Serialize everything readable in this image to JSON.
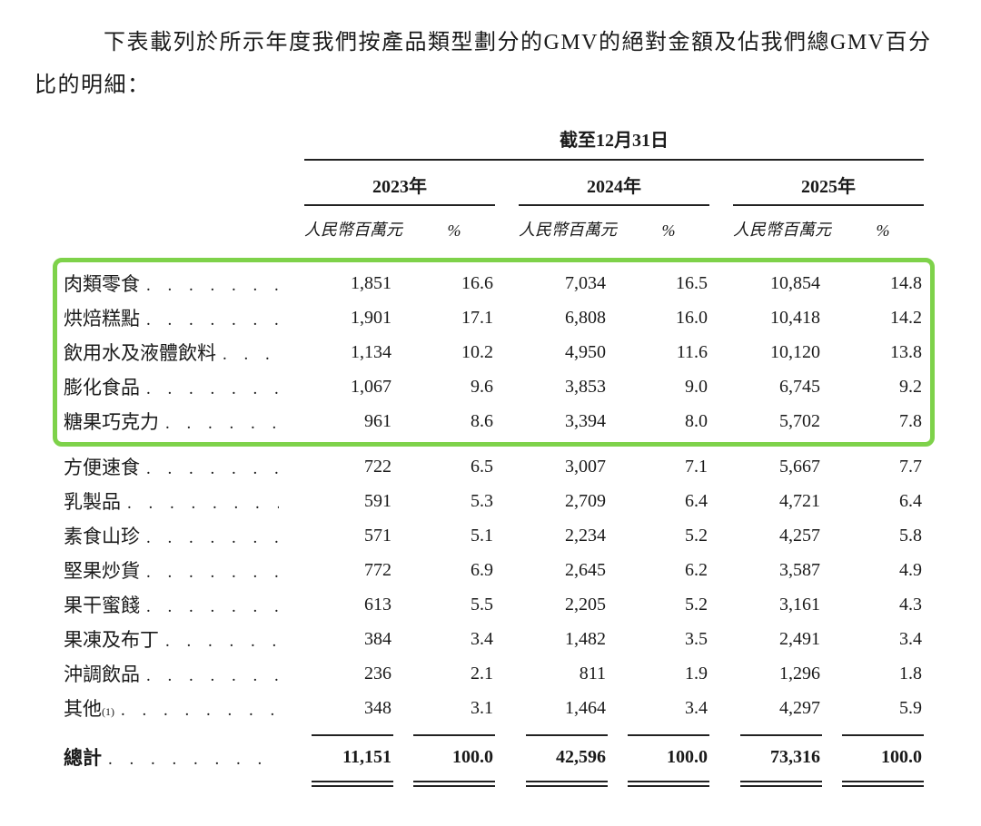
{
  "intro": "下表載列於所示年度我們按產品類型劃分的GMV的絕對金額及佔我們總GMV百分比的明細：",
  "table": {
    "span_header": "截至12月31日",
    "year_headers": [
      "2023年",
      "2024年",
      "2025年"
    ],
    "unit_header": "人民幣百萬元",
    "percent_header": "%",
    "leader": ". . . . . . . . . . . . . . . . . . . . . . . . . . . . . . . . . . . . . . . .",
    "highlight_color": "#7ed24a",
    "rows": [
      {
        "label": "肉類零食",
        "highlight": true,
        "values": [
          "1,851",
          "16.6",
          "7,034",
          "16.5",
          "10,854",
          "14.8"
        ]
      },
      {
        "label": "烘焙糕點",
        "highlight": true,
        "values": [
          "1,901",
          "17.1",
          "6,808",
          "16.0",
          "10,418",
          "14.2"
        ]
      },
      {
        "label": "飲用水及液體飲料",
        "highlight": true,
        "values": [
          "1,134",
          "10.2",
          "4,950",
          "11.6",
          "10,120",
          "13.8"
        ]
      },
      {
        "label": "膨化食品",
        "highlight": true,
        "values": [
          "1,067",
          "9.6",
          "3,853",
          "9.0",
          "6,745",
          "9.2"
        ]
      },
      {
        "label": "糖果巧克力",
        "highlight": true,
        "values": [
          "961",
          "8.6",
          "3,394",
          "8.0",
          "5,702",
          "7.8"
        ]
      },
      {
        "label": "方便速食",
        "highlight": false,
        "values": [
          "722",
          "6.5",
          "3,007",
          "7.1",
          "5,667",
          "7.7"
        ]
      },
      {
        "label": "乳製品",
        "highlight": false,
        "values": [
          "591",
          "5.3",
          "2,709",
          "6.4",
          "4,721",
          "6.4"
        ]
      },
      {
        "label": "素食山珍",
        "highlight": false,
        "values": [
          "571",
          "5.1",
          "2,234",
          "5.2",
          "4,257",
          "5.8"
        ]
      },
      {
        "label": "堅果炒貨",
        "highlight": false,
        "values": [
          "772",
          "6.9",
          "2,645",
          "6.2",
          "3,587",
          "4.9"
        ]
      },
      {
        "label": "果干蜜餞",
        "highlight": false,
        "values": [
          "613",
          "5.5",
          "2,205",
          "5.2",
          "3,161",
          "4.3"
        ]
      },
      {
        "label": "果凍及布丁",
        "highlight": false,
        "values": [
          "384",
          "3.4",
          "1,482",
          "3.5",
          "2,491",
          "3.4"
        ]
      },
      {
        "label": "沖調飲品",
        "highlight": false,
        "values": [
          "236",
          "2.1",
          "811",
          "1.9",
          "1,296",
          "1.8"
        ]
      },
      {
        "label": "其他",
        "note": "(1)",
        "highlight": false,
        "values": [
          "348",
          "3.1",
          "1,464",
          "3.4",
          "4,297",
          "5.9"
        ]
      }
    ],
    "total": {
      "label": "總計",
      "values": [
        "11,151",
        "100.0",
        "42,596",
        "100.0",
        "73,316",
        "100.0"
      ]
    }
  }
}
